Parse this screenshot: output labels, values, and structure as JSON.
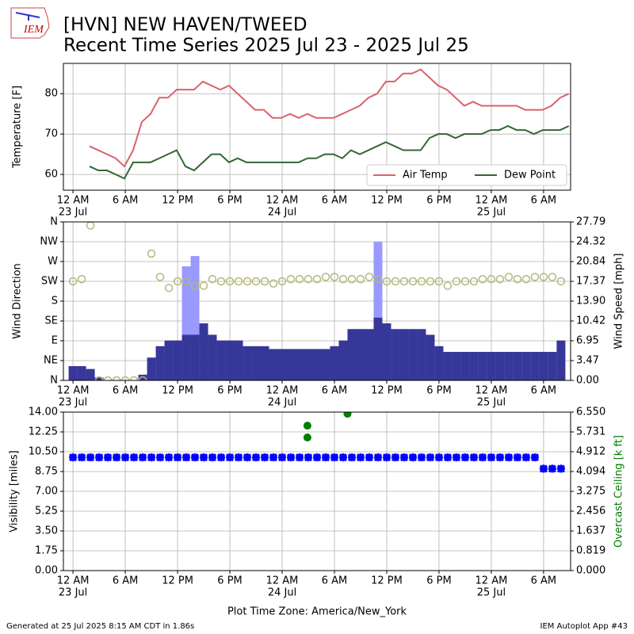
{
  "logo": "IEM",
  "footer": {
    "left": "Generated at 25 Jul 2025 8:15 AM CDT in 1.86s",
    "right": "IEM Autoplot App #43"
  },
  "chart_data": [
    {
      "type": "line",
      "title": "[HVN] NEW HAVEN/TWEED",
      "subtitle": "Recent Time Series 2025 Jul 23 - 2025 Jul 25",
      "ylabel": "Temperature [F]",
      "grid": true,
      "legend": "lower right",
      "xlim": [
        -1.1,
        57.1
      ],
      "xticks": [
        {
          "value": 0,
          "label": "12 AM"
        },
        {
          "value": 6,
          "label": "6 AM"
        },
        {
          "value": 12,
          "label": "12 PM"
        },
        {
          "value": 18,
          "label": "6 PM"
        },
        {
          "value": 24,
          "label": "12 AM"
        },
        {
          "value": 30,
          "label": "6 AM"
        },
        {
          "value": 36,
          "label": "12 PM"
        },
        {
          "value": 42,
          "label": "6 PM"
        },
        {
          "value": 48,
          "label": "12 AM"
        },
        {
          "value": 54,
          "label": "6 AM"
        }
      ],
      "xtick_dates": [
        {
          "value": 0,
          "label": "23 Jul"
        },
        {
          "value": 24,
          "label": "24 Jul"
        },
        {
          "value": 48,
          "label": "25 Jul"
        }
      ],
      "ylim": [
        56.1,
        87.5
      ],
      "yticks": [
        60,
        70,
        80
      ],
      "x": [
        1.9,
        2.9,
        3.9,
        4.9,
        5.9,
        6.9,
        7.9,
        8.9,
        9.9,
        10.9,
        11.9,
        12.9,
        13.9,
        14.9,
        15.9,
        16.9,
        17.9,
        18.9,
        19.9,
        20.9,
        21.9,
        22.9,
        23.9,
        24.9,
        25.9,
        26.9,
        27.9,
        28.9,
        29.9,
        30.9,
        31.9,
        32.9,
        33.9,
        34.9,
        35.9,
        36.9,
        37.9,
        38.9,
        39.9,
        40.9,
        41.9,
        42.9,
        43.9,
        44.9,
        45.9,
        46.9,
        47.9,
        48.9,
        49.9,
        50.9,
        51.9,
        52.9,
        53.9,
        54.9,
        55.9,
        56.9
      ],
      "series": [
        {
          "name": "Air Temp",
          "color": "#d8636b",
          "values": [
            67,
            66,
            65,
            64,
            62,
            66,
            73,
            75,
            79,
            79,
            81,
            81,
            81,
            83,
            82,
            81,
            82,
            80,
            78,
            76,
            76,
            74,
            74,
            75,
            74,
            75,
            74,
            74,
            74,
            75,
            76,
            77,
            79,
            80,
            83,
            83,
            85,
            85,
            86,
            84,
            82,
            81,
            79,
            77,
            78,
            77,
            77,
            77,
            77,
            77,
            76,
            76,
            76,
            77,
            79,
            80
          ]
        },
        {
          "name": "Dew Point",
          "color": "#336633",
          "values": [
            62,
            61,
            61,
            60,
            59,
            63,
            63,
            63,
            64,
            65,
            66,
            62,
            61,
            63,
            65,
            65,
            63,
            64,
            63,
            63,
            63,
            63,
            63,
            63,
            63,
            64,
            64,
            65,
            65,
            64,
            66,
            65,
            66,
            67,
            68,
            67,
            66,
            66,
            66,
            69,
            70,
            70,
            69,
            70,
            70,
            70,
            71,
            71,
            72,
            71,
            71,
            70,
            71,
            71,
            71,
            72
          ]
        }
      ]
    },
    {
      "type": "bar",
      "ylabel": "Wind Direction",
      "y2label": "Wind Speed [mph]",
      "grid": true,
      "xlim": [
        -1.1,
        57.1
      ],
      "xticks": [
        {
          "value": 0,
          "label": "12 AM"
        },
        {
          "value": 6,
          "label": "6 AM"
        },
        {
          "value": 12,
          "label": "12 PM"
        },
        {
          "value": 18,
          "label": "6 PM"
        },
        {
          "value": 24,
          "label": "12 AM"
        },
        {
          "value": 30,
          "label": "6 AM"
        },
        {
          "value": 36,
          "label": "12 PM"
        },
        {
          "value": 42,
          "label": "6 PM"
        },
        {
          "value": 48,
          "label": "12 AM"
        },
        {
          "value": 54,
          "label": "6 AM"
        }
      ],
      "xtick_dates": [
        {
          "value": 0,
          "label": "23 Jul"
        },
        {
          "value": 24,
          "label": "24 Jul"
        },
        {
          "value": 48,
          "label": "25 Jul"
        }
      ],
      "ylim": [
        0,
        360
      ],
      "yticks": [
        {
          "value": 0,
          "label": "N"
        },
        {
          "value": 45,
          "label": "NE"
        },
        {
          "value": 90,
          "label": "E"
        },
        {
          "value": 135,
          "label": "SE"
        },
        {
          "value": 180,
          "label": "S"
        },
        {
          "value": 225,
          "label": "SW"
        },
        {
          "value": 270,
          "label": "W"
        },
        {
          "value": 315,
          "label": "NW"
        },
        {
          "value": 360,
          "label": "N"
        }
      ],
      "y2lim": [
        0,
        27.79
      ],
      "y2ticks": [
        {
          "value": 0,
          "label": "0.00"
        },
        3.47,
        6.95,
        10.42,
        {
          "value": 13.9,
          "label": "13.90"
        },
        17.37,
        20.84,
        24.32,
        27.79
      ],
      "x": [
        0,
        1,
        2,
        3,
        4,
        5,
        6,
        7,
        8,
        9,
        10,
        11,
        12,
        13,
        14,
        15,
        16,
        17,
        18,
        19,
        20,
        21,
        22,
        23,
        24,
        25,
        26,
        27,
        28,
        29,
        30,
        31,
        32,
        33,
        34,
        35,
        36,
        37,
        38,
        39,
        40,
        41,
        42,
        43,
        44,
        45,
        46,
        47,
        48,
        49,
        50,
        51,
        52,
        53,
        54,
        55,
        56
      ],
      "series": [
        {
          "axis": "y2",
          "color": "#9999ff",
          "values": [
            null,
            null,
            null,
            null,
            null,
            null,
            null,
            null,
            null,
            null,
            null,
            null,
            null,
            20,
            21.8,
            null,
            null,
            null,
            null,
            null,
            null,
            null,
            null,
            null,
            null,
            null,
            null,
            null,
            null,
            null,
            null,
            null,
            null,
            null,
            null,
            24.3,
            null,
            null,
            null,
            null,
            null,
            null,
            null,
            null,
            null,
            null,
            null,
            null,
            null,
            null,
            null,
            null,
            null,
            null,
            null,
            null,
            null
          ]
        },
        {
          "axis": "y2",
          "color": "#373799",
          "values": [
            2.5,
            2.5,
            2,
            0.5,
            0,
            0,
            0,
            0,
            1,
            4,
            6,
            7,
            7,
            8,
            8,
            10,
            8,
            7,
            7,
            7,
            6,
            6,
            6,
            5.5,
            5.5,
            5.5,
            5.5,
            5.5,
            5.5,
            5.5,
            6,
            7,
            9,
            9,
            9,
            11,
            10,
            9,
            9,
            9,
            9,
            8,
            6,
            5,
            5,
            5,
            5,
            5,
            5,
            5,
            5,
            5,
            5,
            5,
            5,
            5,
            7
          ]
        },
        {
          "type": "scatter",
          "marker": "open-circle",
          "color": "#b5b77a",
          "values": [
            225,
            230,
            352,
            0,
            0,
            0,
            0,
            0,
            0,
            288,
            235,
            210,
            225,
            225,
            215,
            215,
            230,
            225,
            225,
            225,
            225,
            225,
            225,
            220,
            225,
            230,
            230,
            230,
            230,
            235,
            235,
            230,
            230,
            230,
            235,
            230,
            225,
            225,
            225,
            225,
            225,
            225,
            225,
            215,
            225,
            225,
            225,
            230,
            230,
            230,
            235,
            230,
            230,
            235,
            235,
            235,
            225
          ]
        }
      ]
    },
    {
      "type": "scatter",
      "ylabel": "Visibility [miles]",
      "y2label": "Overcast Ceiling [k ft]",
      "y2color": "#008000",
      "grid": true,
      "xlabel": "Plot Time Zone: America/New_York",
      "xlim": [
        -1.1,
        57.1
      ],
      "xticks": [
        {
          "value": 0,
          "label": "12 AM"
        },
        {
          "value": 6,
          "label": "6 AM"
        },
        {
          "value": 12,
          "label": "12 PM"
        },
        {
          "value": 18,
          "label": "6 PM"
        },
        {
          "value": 24,
          "label": "12 AM"
        },
        {
          "value": 30,
          "label": "6 AM"
        },
        {
          "value": 36,
          "label": "12 PM"
        },
        {
          "value": 42,
          "label": "6 PM"
        },
        {
          "value": 48,
          "label": "12 AM"
        },
        {
          "value": 54,
          "label": "6 AM"
        }
      ],
      "xtick_dates": [
        {
          "value": 0,
          "label": "23 Jul"
        },
        {
          "value": 24,
          "label": "24 Jul"
        },
        {
          "value": 48,
          "label": "25 Jul"
        }
      ],
      "ylim": [
        0,
        14
      ],
      "yticks": [
        {
          "value": 0,
          "label": "0.00"
        },
        1.75,
        {
          "value": 3.5,
          "label": "3.50"
        },
        5.25,
        {
          "value": 7,
          "label": "7.00"
        },
        8.75,
        {
          "value": 10.5,
          "label": "10.50"
        },
        12.25,
        {
          "value": 14,
          "label": "14.00"
        }
      ],
      "y2lim": [
        0,
        6.55
      ],
      "y2ticks": [
        {
          "value": 0,
          "label": "0.000"
        },
        0.819,
        1.637,
        2.456,
        3.275,
        4.094,
        4.912,
        5.731,
        {
          "value": 6.55,
          "label": "6.550"
        }
      ],
      "series": [
        {
          "marker": "star",
          "color": "#0000ff",
          "x": [
            0,
            1,
            2,
            3,
            4,
            5,
            6,
            7,
            8,
            9,
            10,
            11,
            12,
            13,
            14,
            15,
            16,
            17,
            18,
            19,
            20,
            21,
            22,
            23,
            24,
            25,
            26,
            27,
            28,
            29,
            30,
            31,
            32,
            33,
            34,
            35,
            36,
            37,
            38,
            39,
            40,
            41,
            42,
            43,
            44,
            45,
            46,
            47,
            48,
            49,
            50,
            51,
            52,
            53,
            54,
            55,
            56
          ],
          "values": [
            10,
            10,
            10,
            10,
            10,
            10,
            10,
            10,
            10,
            10,
            10,
            10,
            10,
            10,
            10,
            10,
            10,
            10,
            10,
            10,
            10,
            10,
            10,
            10,
            10,
            10,
            10,
            10,
            10,
            10,
            10,
            10,
            10,
            10,
            10,
            10,
            10,
            10,
            10,
            10,
            10,
            10,
            10,
            10,
            10,
            10,
            10,
            10,
            10,
            10,
            10,
            10,
            10,
            10,
            9,
            9,
            9
          ]
        },
        {
          "axis": "y2",
          "marker": "circle",
          "color": "#008000",
          "x": [
            26.9,
            26.9,
            31.5
          ],
          "values": [
            5.99,
            5.5,
            6.48
          ]
        }
      ]
    }
  ]
}
